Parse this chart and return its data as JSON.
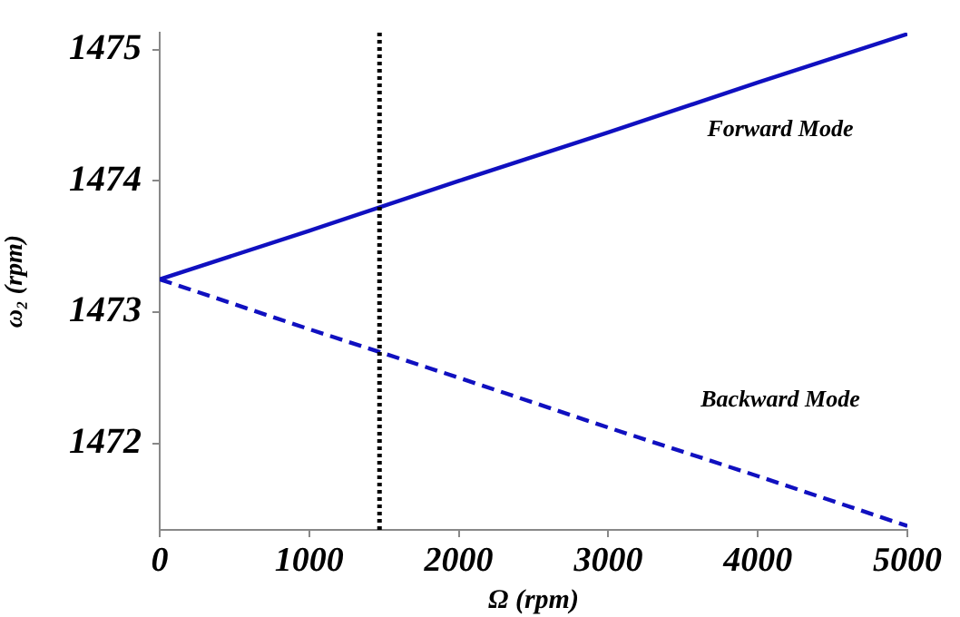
{
  "chart_data": {
    "type": "line",
    "xlabel": "Ω (rpm)",
    "ylabel": "ω₂ (rpm)",
    "xlim": [
      0,
      5000
    ],
    "xticks": [
      0,
      1000,
      2000,
      3000,
      4000,
      5000
    ],
    "ylim": [
      1471.34,
      1475.13
    ],
    "yticks": [
      1472,
      1473,
      1474,
      1475
    ],
    "grid": false,
    "legend": false,
    "marker": "none",
    "series": [
      {
        "name": "Forward Mode",
        "color": "#1010c0",
        "line_style": "solid",
        "x": [
          0,
          1000,
          2000,
          3000,
          4000,
          5000
        ],
        "values": [
          1473.25,
          1473.62,
          1474.0,
          1474.37,
          1474.75,
          1475.12
        ]
      },
      {
        "name": "Backward Mode",
        "color": "#1010c0",
        "line_style": "dashed",
        "x": [
          0,
          1000,
          2000,
          3000,
          4000,
          5000
        ],
        "values": [
          1473.25,
          1472.87,
          1472.5,
          1472.12,
          1471.75,
          1471.37
        ]
      }
    ],
    "ref_lines": [
      {
        "axis": "x",
        "value": 1470,
        "color": "#000000",
        "line_style": "dotted"
      }
    ]
  }
}
